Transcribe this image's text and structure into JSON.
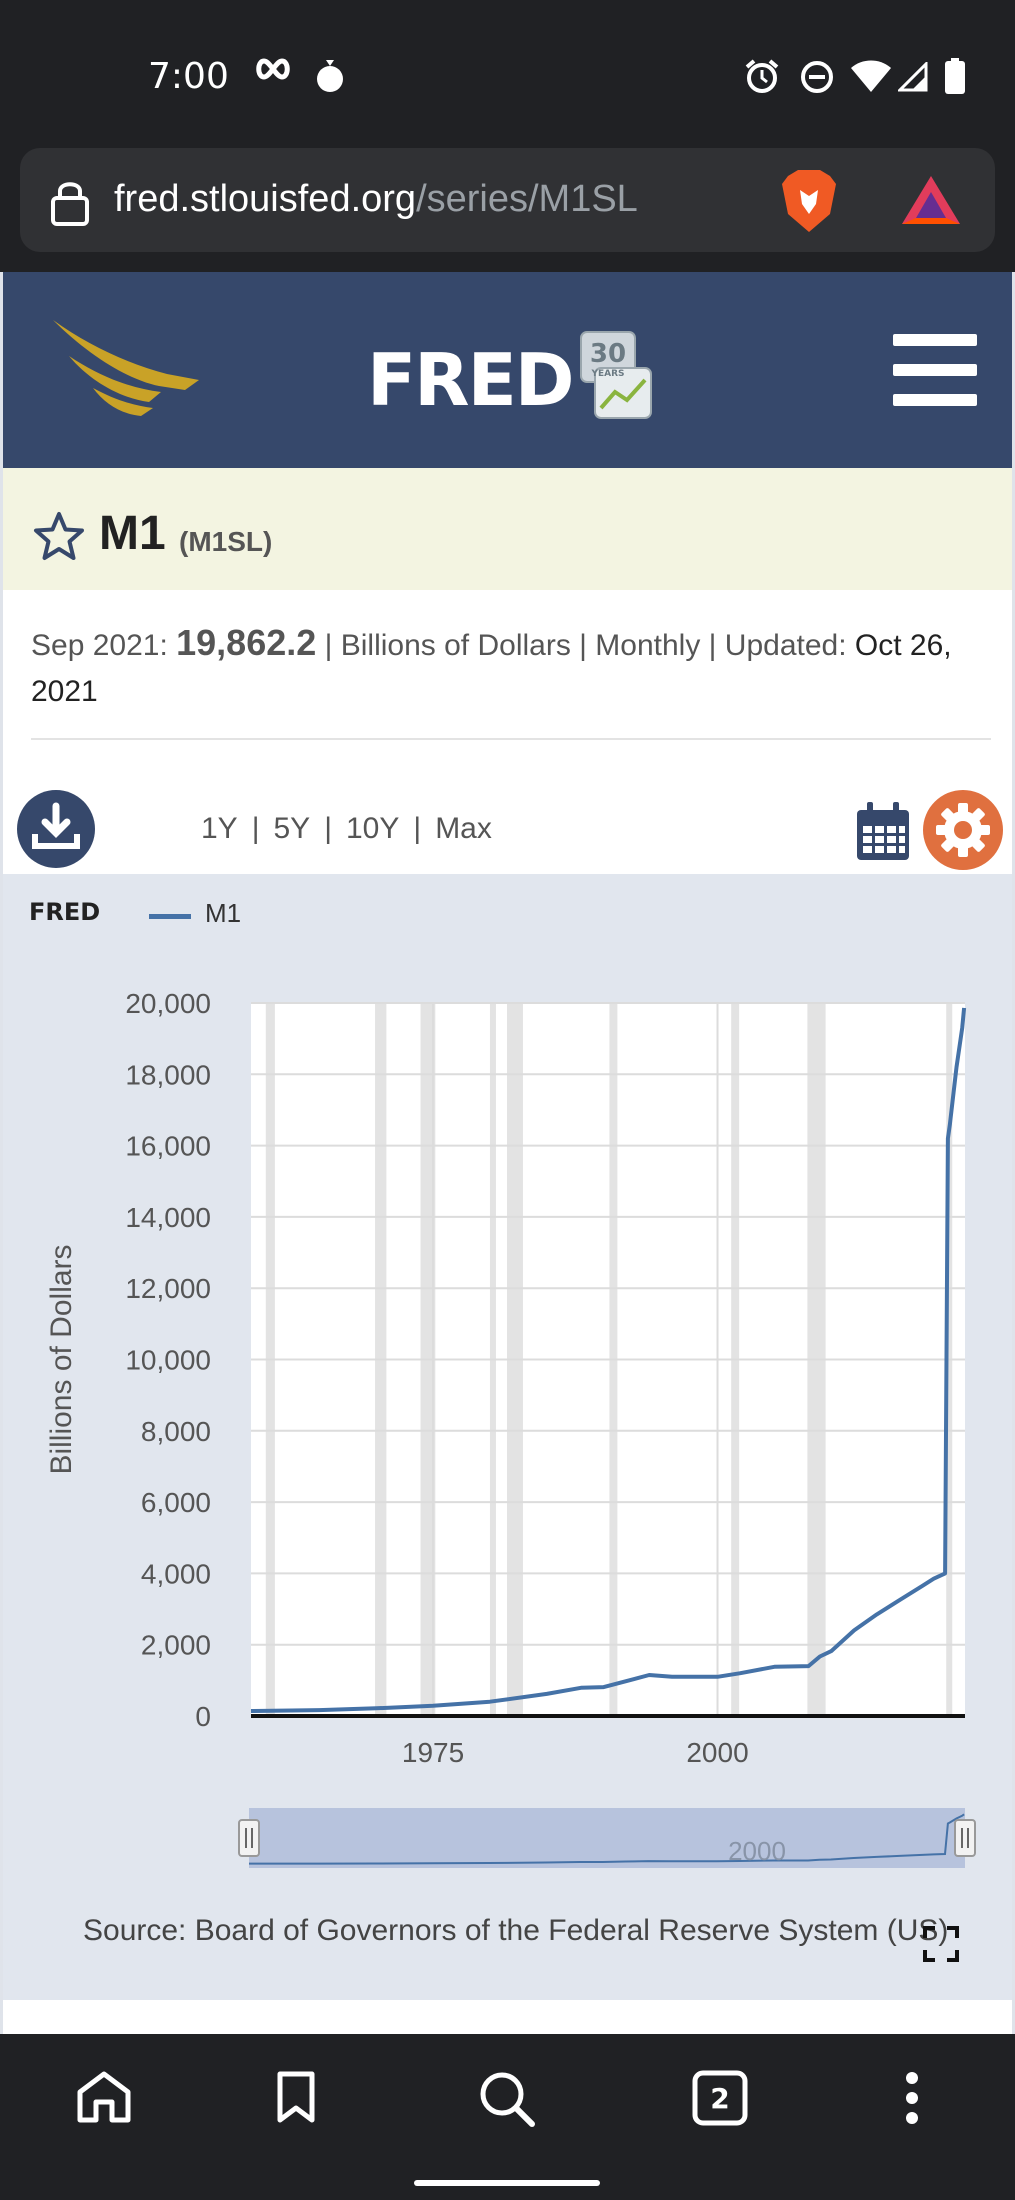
{
  "status_bar": {
    "time": "7:00"
  },
  "browser": {
    "url_host": "fred.stlouisfed.org",
    "url_path": "/series/M1SL"
  },
  "header": {
    "logo_text": "FRED",
    "anniversary_badge": "30",
    "anniversary_sub": "YEARS"
  },
  "series": {
    "name": "M1",
    "id": "(M1SL)"
  },
  "meta": {
    "period": "Sep 2021:",
    "value": "19,862.2",
    "units_freq": "| Billions of Dollars | Monthly | Updated:",
    "updated": "Oct 26, 2021"
  },
  "toolbar": {
    "ranges": [
      "1Y",
      "5Y",
      "10Y",
      "Max"
    ]
  },
  "legend": {
    "brand": "FRED",
    "series_label": "M1"
  },
  "chart_data": {
    "type": "line",
    "ylabel": "Billions of Dollars",
    "ylim": [
      0,
      20000
    ],
    "yticks": [
      "0",
      "2,000",
      "4,000",
      "6,000",
      "8,000",
      "10,000",
      "12,000",
      "14,000",
      "16,000",
      "18,000",
      "20,000"
    ],
    "xlim": [
      1959,
      2021.75
    ],
    "xticks": [
      "1975",
      "2000"
    ],
    "grid": true,
    "legend_position": "top-left",
    "line_color": "#4572a7",
    "recession_bands": [
      [
        1960.3,
        1961.1
      ],
      [
        1969.9,
        1970.9
      ],
      [
        1973.9,
        1975.2
      ],
      [
        1980.0,
        1980.5
      ],
      [
        1981.5,
        1982.9
      ],
      [
        1990.5,
        1991.2
      ],
      [
        2001.2,
        2001.9
      ],
      [
        2007.9,
        2009.5
      ],
      [
        2020.1,
        2020.3
      ]
    ],
    "series": [
      {
        "name": "M1",
        "x": [
          1959,
          1965,
          1970,
          1975,
          1980,
          1985,
          1988,
          1990,
          1992,
          1994,
          1996,
          2000,
          2002,
          2005,
          2008,
          2009,
          2010,
          2012,
          2014,
          2016,
          2018,
          2019,
          2020.0,
          2020.25,
          2020.42,
          2021.0,
          2021.5,
          2021.67
        ],
        "y": [
          140,
          165,
          215,
          290,
          400,
          620,
          790,
          810,
          980,
          1150,
          1100,
          1100,
          1200,
          1380,
          1400,
          1670,
          1820,
          2400,
          2850,
          3250,
          3650,
          3850,
          4000,
          16200,
          16600,
          18200,
          19300,
          19862.2
        ]
      }
    ],
    "navigator": {
      "tick_label": "2000"
    }
  },
  "source": {
    "text": "Source: Board of Governors of the Federal Reserve System (US)"
  },
  "nav": {
    "tab_count": "2"
  }
}
